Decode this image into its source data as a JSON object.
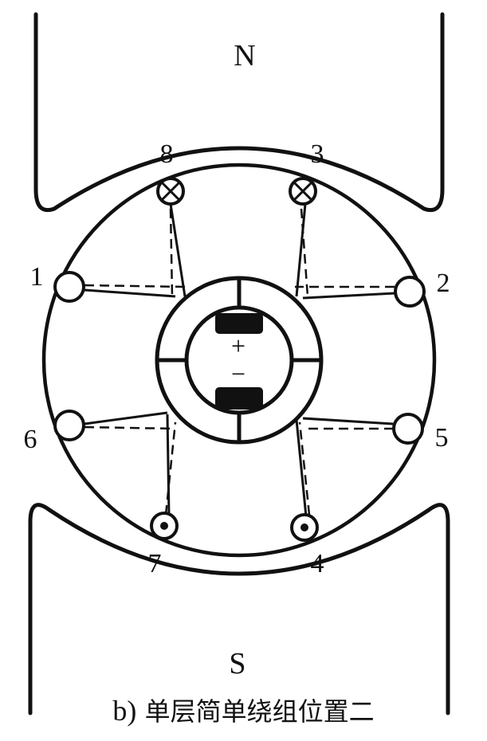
{
  "poles": {
    "north": "N",
    "south": "S"
  },
  "commutator": {
    "plus": "+",
    "minus": "−"
  },
  "slots": [
    {
      "id": "1",
      "label": "1",
      "symbol": "plain"
    },
    {
      "id": "2",
      "label": "2",
      "symbol": "plain"
    },
    {
      "id": "3",
      "label": "3",
      "symbol": "cross"
    },
    {
      "id": "4",
      "label": "4",
      "symbol": "dot"
    },
    {
      "id": "5",
      "label": "5",
      "symbol": "plain"
    },
    {
      "id": "6",
      "label": "6",
      "symbol": "plain"
    },
    {
      "id": "7",
      "label": "7",
      "symbol": "dot"
    },
    {
      "id": "8",
      "label": "8",
      "symbol": "cross"
    }
  ],
  "caption": {
    "prefix": "b)",
    "text": "单层简单绕组位置二"
  }
}
